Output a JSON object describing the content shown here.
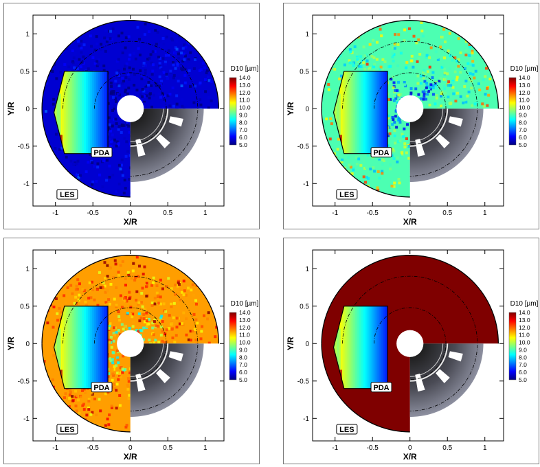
{
  "axes": {
    "xlabel": "X/R",
    "ylabel": "Y/R",
    "xticks": [
      "-1",
      "-0.5",
      "0",
      "0.5",
      "1"
    ],
    "yticks": [
      "1",
      "0.5",
      "0",
      "-0.5",
      "-1"
    ],
    "xlim": [
      -1.3,
      1.25
    ],
    "ylim": [
      -1.3,
      1.25
    ]
  },
  "legend": {
    "title": "D10 [µm]",
    "levels": [
      "14.0",
      "13.0",
      "12.0",
      "11.0",
      "10.0",
      "9.0",
      "8.0",
      "7.0",
      "6.0",
      "5.0"
    ]
  },
  "labels": {
    "pda": "PDA",
    "les": "LES"
  },
  "colors": {
    "colormap": [
      "#00007f",
      "#0000ff",
      "#007fff",
      "#00ffff",
      "#7fff7f",
      "#ffff00",
      "#ff7f00",
      "#ff0000",
      "#7f0000"
    ],
    "geometry_dark": "#2f2f2f",
    "geometry_light": "#a3a6b8"
  },
  "chart_data": [
    {
      "type": "heatmap",
      "panel": "top-left",
      "les_fill_level": "low (~5.5)",
      "radius_extent": 1.18
    },
    {
      "type": "heatmap",
      "panel": "top-right",
      "les_fill_level": "mid (~8.5)",
      "radius_extent": 1.18
    },
    {
      "type": "heatmap",
      "panel": "bottom-left",
      "les_fill_level": "high (~11)",
      "radius_extent": 1.18
    },
    {
      "type": "heatmap",
      "panel": "bottom-right",
      "les_fill_level": "saturated (>14)",
      "radius_extent": 1.18
    }
  ]
}
